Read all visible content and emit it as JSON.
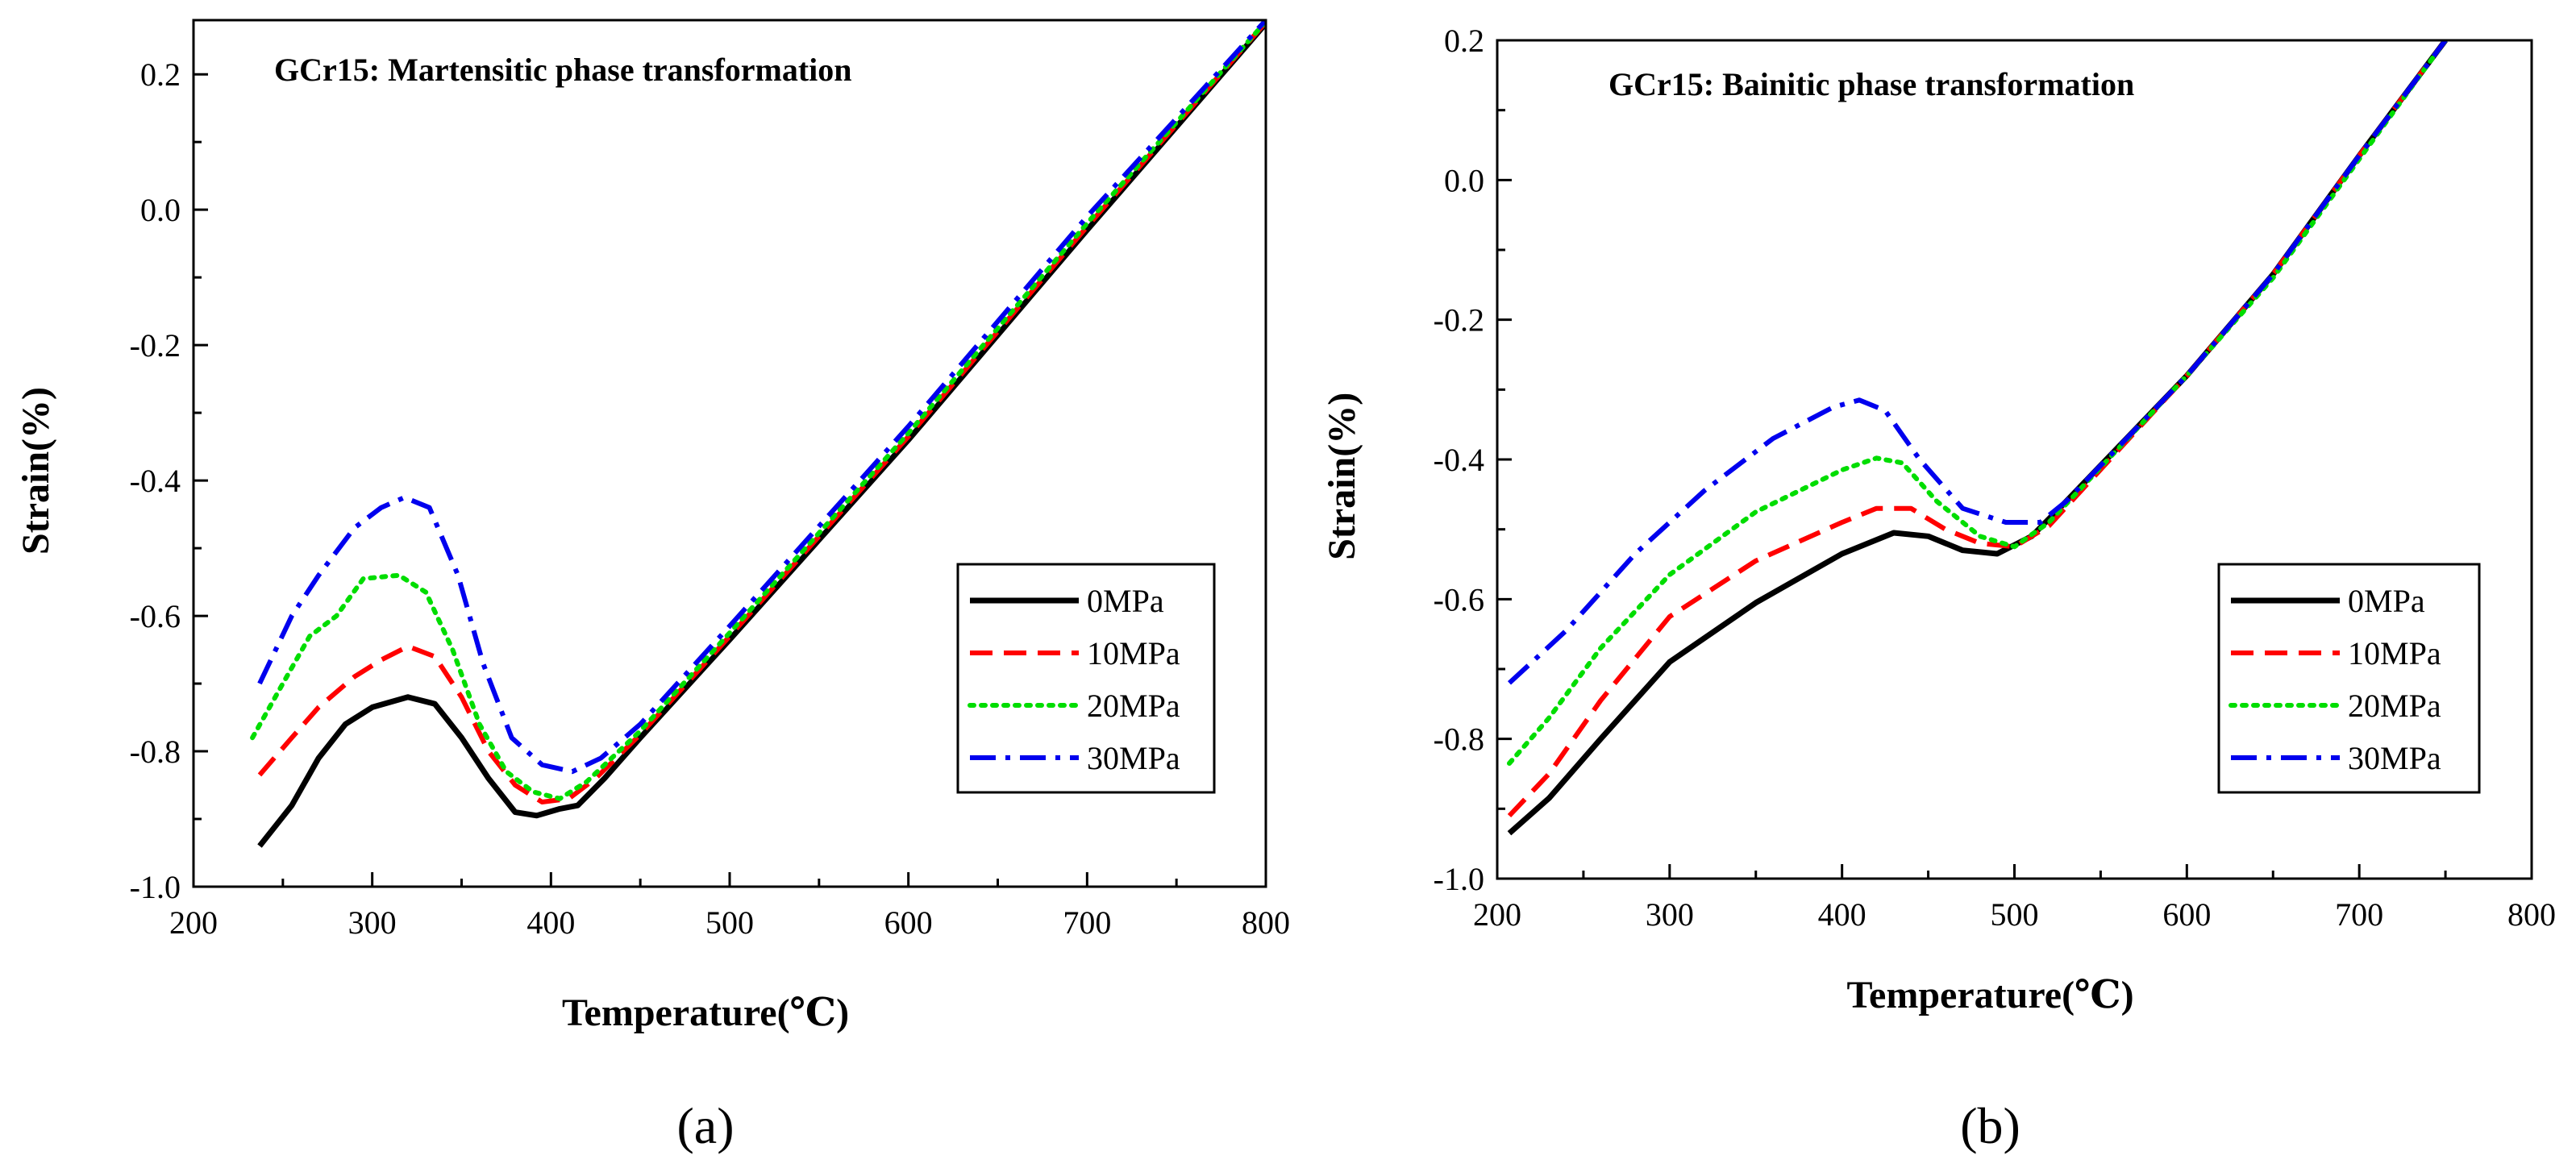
{
  "chart_data": [
    {
      "type": "line",
      "panel": "(a)",
      "title": "GCr15: Martensitic phase transformation",
      "xlabel": "Temperature(℃)",
      "ylabel": "Strain(%)",
      "xlim": [
        200,
        800
      ],
      "ylim": [
        -1.0,
        0.28
      ],
      "xticks": [
        200,
        300,
        400,
        500,
        600,
        700,
        800
      ],
      "xtick_labels": [
        "200",
        "300",
        "400",
        "500",
        "600",
        "700",
        "800"
      ],
      "yticks": [
        -1.0,
        -0.8,
        -0.6,
        -0.4,
        -0.2,
        0.0,
        0.2
      ],
      "ytick_labels": [
        "-1.0",
        "-0.8",
        "-0.6",
        "-0.4",
        "-0.2",
        "0.0",
        "0.2"
      ],
      "legend_position": "lower-right",
      "series": [
        {
          "name": "0MPa",
          "color": "#000000",
          "style": "solid",
          "points": [
            [
              237,
              -0.94
            ],
            [
              255,
              -0.88
            ],
            [
              270,
              -0.81
            ],
            [
              285,
              -0.76
            ],
            [
              300,
              -0.735
            ],
            [
              320,
              -0.72
            ],
            [
              335,
              -0.73
            ],
            [
              350,
              -0.78
            ],
            [
              365,
              -0.84
            ],
            [
              380,
              -0.89
            ],
            [
              392,
              -0.895
            ],
            [
              405,
              -0.885
            ],
            [
              415,
              -0.88
            ],
            [
              430,
              -0.84
            ],
            [
              450,
              -0.78
            ],
            [
              500,
              -0.635
            ],
            [
              600,
              -0.34
            ],
            [
              700,
              -0.03
            ],
            [
              800,
              0.275
            ]
          ]
        },
        {
          "name": "10MPa",
          "color": "#ff0000",
          "style": "dash",
          "points": [
            [
              237,
              -0.835
            ],
            [
              255,
              -0.78
            ],
            [
              270,
              -0.735
            ],
            [
              290,
              -0.69
            ],
            [
              305,
              -0.665
            ],
            [
              320,
              -0.645
            ],
            [
              335,
              -0.66
            ],
            [
              350,
              -0.72
            ],
            [
              365,
              -0.8
            ],
            [
              380,
              -0.85
            ],
            [
              395,
              -0.875
            ],
            [
              410,
              -0.87
            ],
            [
              425,
              -0.84
            ],
            [
              450,
              -0.775
            ],
            [
              500,
              -0.63
            ],
            [
              600,
              -0.335
            ],
            [
              700,
              -0.025
            ],
            [
              800,
              0.277
            ]
          ]
        },
        {
          "name": "20MPa",
          "color": "#00dd00",
          "style": "dot",
          "points": [
            [
              233,
              -0.78
            ],
            [
              250,
              -0.7
            ],
            [
              265,
              -0.63
            ],
            [
              280,
              -0.6
            ],
            [
              295,
              -0.545
            ],
            [
              315,
              -0.54
            ],
            [
              330,
              -0.565
            ],
            [
              345,
              -0.65
            ],
            [
              360,
              -0.76
            ],
            [
              375,
              -0.83
            ],
            [
              390,
              -0.86
            ],
            [
              405,
              -0.87
            ],
            [
              420,
              -0.845
            ],
            [
              450,
              -0.77
            ],
            [
              500,
              -0.625
            ],
            [
              600,
              -0.33
            ],
            [
              700,
              -0.02
            ],
            [
              800,
              0.278
            ]
          ]
        },
        {
          "name": "30MPa",
          "color": "#0000ee",
          "style": "dashdot",
          "points": [
            [
              237,
              -0.7
            ],
            [
              255,
              -0.6
            ],
            [
              270,
              -0.54
            ],
            [
              290,
              -0.47
            ],
            [
              305,
              -0.44
            ],
            [
              318,
              -0.425
            ],
            [
              332,
              -0.44
            ],
            [
              348,
              -0.54
            ],
            [
              362,
              -0.67
            ],
            [
              378,
              -0.78
            ],
            [
              395,
              -0.82
            ],
            [
              412,
              -0.83
            ],
            [
              428,
              -0.81
            ],
            [
              450,
              -0.76
            ],
            [
              500,
              -0.615
            ],
            [
              600,
              -0.32
            ],
            [
              700,
              -0.01
            ],
            [
              800,
              0.28
            ]
          ]
        }
      ]
    },
    {
      "type": "line",
      "panel": "(b)",
      "title": "GCr15:  Bainitic phase transformation",
      "xlabel": "Temperature(℃)",
      "ylabel": "Strain(%)",
      "xlim": [
        200,
        800
      ],
      "ylim": [
        -1.0,
        0.2
      ],
      "xticks": [
        200,
        300,
        400,
        500,
        600,
        700,
        800
      ],
      "xtick_labels": [
        "200",
        "300",
        "400",
        "500",
        "600",
        "700",
        "800"
      ],
      "yticks": [
        -1.0,
        -0.8,
        -0.6,
        -0.4,
        -0.2,
        0.0,
        0.2
      ],
      "ytick_labels": [
        "-1.0",
        "-0.8",
        "-0.6",
        "-0.4",
        "-0.2",
        "0.0",
        "0.2"
      ],
      "legend_position": "lower-right",
      "series": [
        {
          "name": "0MPa",
          "color": "#000000",
          "style": "solid",
          "points": [
            [
              207,
              -0.935
            ],
            [
              230,
              -0.885
            ],
            [
              260,
              -0.8
            ],
            [
              300,
              -0.69
            ],
            [
              350,
              -0.605
            ],
            [
              400,
              -0.535
            ],
            [
              430,
              -0.505
            ],
            [
              450,
              -0.51
            ],
            [
              470,
              -0.53
            ],
            [
              490,
              -0.535
            ],
            [
              510,
              -0.51
            ],
            [
              530,
              -0.46
            ],
            [
              600,
              -0.28
            ],
            [
              650,
              -0.135
            ],
            [
              700,
              0.035
            ],
            [
              750,
              0.2
            ]
          ]
        },
        {
          "name": "10MPa",
          "color": "#ff0000",
          "style": "dash",
          "points": [
            [
              207,
              -0.91
            ],
            [
              230,
              -0.85
            ],
            [
              260,
              -0.745
            ],
            [
              300,
              -0.625
            ],
            [
              350,
              -0.545
            ],
            [
              400,
              -0.49
            ],
            [
              420,
              -0.47
            ],
            [
              440,
              -0.47
            ],
            [
              460,
              -0.5
            ],
            [
              480,
              -0.52
            ],
            [
              500,
              -0.525
            ],
            [
              520,
              -0.495
            ],
            [
              600,
              -0.28
            ],
            [
              650,
              -0.135
            ],
            [
              700,
              0.035
            ],
            [
              750,
              0.2
            ]
          ]
        },
        {
          "name": "20MPa",
          "color": "#00dd00",
          "style": "dot",
          "points": [
            [
              207,
              -0.835
            ],
            [
              230,
              -0.77
            ],
            [
              260,
              -0.67
            ],
            [
              300,
              -0.565
            ],
            [
              350,
              -0.475
            ],
            [
              400,
              -0.415
            ],
            [
              420,
              -0.398
            ],
            [
              435,
              -0.405
            ],
            [
              455,
              -0.46
            ],
            [
              480,
              -0.51
            ],
            [
              500,
              -0.525
            ],
            [
              520,
              -0.49
            ],
            [
              600,
              -0.28
            ],
            [
              650,
              -0.14
            ],
            [
              700,
              0.03
            ],
            [
              750,
              0.2
            ]
          ]
        },
        {
          "name": "30MPa",
          "color": "#0000ee",
          "style": "dashdot",
          "points": [
            [
              207,
              -0.72
            ],
            [
              240,
              -0.645
            ],
            [
              280,
              -0.535
            ],
            [
              320,
              -0.445
            ],
            [
              360,
              -0.37
            ],
            [
              395,
              -0.325
            ],
            [
              410,
              -0.315
            ],
            [
              425,
              -0.33
            ],
            [
              445,
              -0.4
            ],
            [
              470,
              -0.47
            ],
            [
              495,
              -0.49
            ],
            [
              515,
              -0.49
            ],
            [
              530,
              -0.46
            ],
            [
              600,
              -0.28
            ],
            [
              650,
              -0.135
            ],
            [
              700,
              0.035
            ],
            [
              750,
              0.2
            ]
          ]
        }
      ]
    }
  ]
}
